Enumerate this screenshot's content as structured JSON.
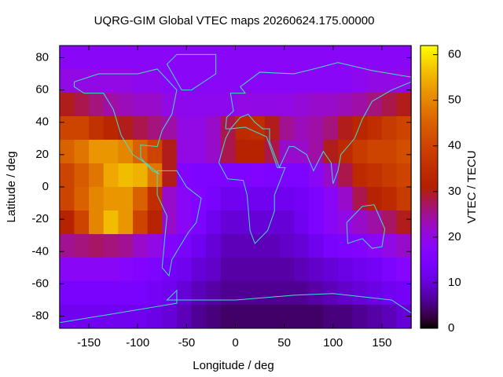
{
  "chart_data": {
    "type": "heatmap",
    "title": "UQRG-GIM Global VTEC maps 20260624.175.00000",
    "xlabel": "Longitude / deg",
    "ylabel": "Latitude / deg",
    "colorbar_label": "VTEC / TECU",
    "xlim": [
      -180,
      180
    ],
    "ylim": [
      -87.5,
      87.5
    ],
    "zlim": [
      0,
      62
    ],
    "xticks": [
      -150,
      -100,
      -50,
      0,
      50,
      100,
      150
    ],
    "yticks": [
      -80,
      -60,
      -40,
      -20,
      0,
      20,
      40,
      60,
      80
    ],
    "zticks": [
      0,
      10,
      20,
      30,
      40,
      50,
      60
    ],
    "x": [
      -172.5,
      -157.5,
      -142.5,
      -127.5,
      -112.5,
      -97.5,
      -82.5,
      -67.5,
      -52.5,
      -37.5,
      -22.5,
      -7.5,
      7.5,
      22.5,
      37.5,
      52.5,
      67.5,
      82.5,
      97.5,
      112.5,
      127.5,
      142.5,
      157.5,
      172.5
    ],
    "y": [
      80.2,
      65.6,
      51.0,
      36.5,
      21.9,
      7.3,
      -7.3,
      -21.9,
      -36.5,
      -51.0,
      -65.6,
      -80.2
    ],
    "values": [
      [
        18,
        18,
        18,
        18,
        18,
        18,
        18,
        18,
        18,
        18,
        18,
        18,
        18,
        18,
        18,
        18,
        18,
        18,
        18,
        18,
        18,
        18,
        18,
        18
      ],
      [
        20,
        20,
        20,
        20,
        20,
        19,
        19,
        18,
        18,
        18,
        18,
        18,
        18,
        18,
        18,
        18,
        18,
        18,
        18,
        18,
        19,
        20,
        20,
        20
      ],
      [
        30,
        28,
        26,
        24,
        23,
        22,
        22,
        20,
        19,
        19,
        19,
        19,
        20,
        20,
        20,
        20,
        21,
        22,
        22,
        23,
        24,
        26,
        28,
        30
      ],
      [
        40,
        40,
        36,
        33,
        30,
        28,
        26,
        24,
        20,
        20,
        22,
        28,
        34,
        35,
        30,
        25,
        23,
        24,
        26,
        30,
        33,
        35,
        38,
        40
      ],
      [
        45,
        48,
        52,
        52,
        50,
        45,
        40,
        30,
        20,
        20,
        22,
        28,
        32,
        32,
        28,
        22,
        22,
        24,
        30,
        34,
        38,
        40,
        40,
        42
      ],
      [
        40,
        44,
        48,
        54,
        56,
        55,
        48,
        30,
        16,
        15,
        15,
        15,
        15,
        16,
        15,
        15,
        15,
        18,
        22,
        28,
        34,
        36,
        38,
        40
      ],
      [
        40,
        45,
        50,
        52,
        52,
        45,
        35,
        22,
        18,
        16,
        14,
        12,
        12,
        12,
        12,
        12,
        13,
        15,
        18,
        22,
        28,
        32,
        34,
        38
      ],
      [
        32,
        40,
        50,
        56,
        52,
        40,
        32,
        22,
        18,
        15,
        12,
        10,
        10,
        10,
        10,
        10,
        12,
        15,
        18,
        20,
        22,
        24,
        27,
        30
      ],
      [
        25,
        26,
        27,
        26,
        25,
        22,
        20,
        16,
        14,
        12,
        10,
        8,
        8,
        8,
        8,
        9,
        10,
        12,
        14,
        15,
        16,
        18,
        20,
        22
      ],
      [
        18,
        18,
        18,
        18,
        17,
        16,
        15,
        13,
        12,
        10,
        9,
        7,
        7,
        7,
        7,
        7,
        8,
        9,
        10,
        11,
        12,
        13,
        15,
        17
      ],
      [
        14,
        14,
        14,
        14,
        14,
        14,
        13,
        12,
        10,
        8,
        7,
        6,
        6,
        6,
        6,
        6,
        6,
        7,
        8,
        9,
        10,
        11,
        12,
        13
      ],
      [
        12,
        12,
        12,
        12,
        12,
        12,
        11,
        10,
        8,
        6,
        5,
        4,
        4,
        4,
        4,
        4,
        4,
        4,
        5,
        5,
        6,
        7,
        8,
        10
      ]
    ]
  }
}
